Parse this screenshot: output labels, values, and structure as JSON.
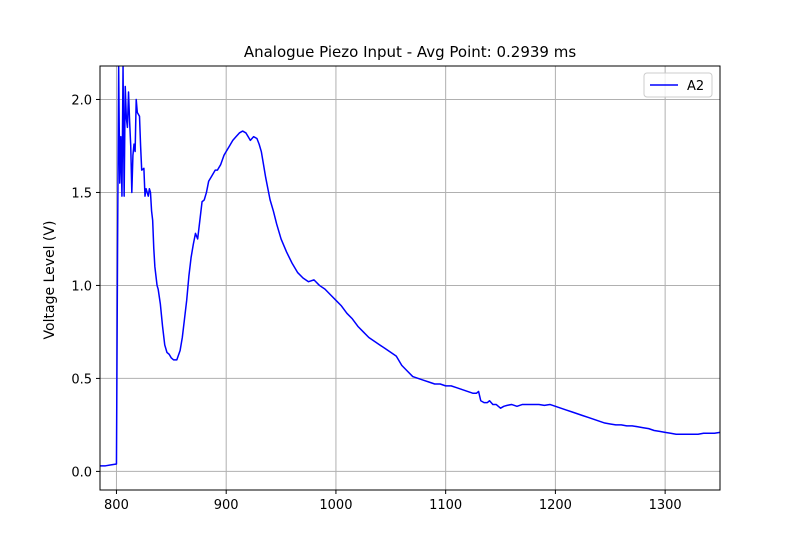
{
  "chart_data": {
    "type": "line",
    "title": "Analogue Piezo Input - Avg Point: 0.2939 ms",
    "xlabel": "",
    "ylabel": "Voltage Level (V)",
    "xlim": [
      785,
      1350
    ],
    "ylim": [
      -0.1,
      2.18
    ],
    "xticks": [
      800,
      900,
      1000,
      1100,
      1200,
      1300
    ],
    "yticks": [
      0.0,
      0.5,
      1.0,
      1.5,
      2.0
    ],
    "xtick_labels": [
      "800",
      "900",
      "1000",
      "1100",
      "1200",
      "1300"
    ],
    "ytick_labels": [
      "0.0",
      "0.5",
      "1.0",
      "1.5",
      "2.0"
    ],
    "grid": true,
    "legend_position": "top-right",
    "series": [
      {
        "name": "A2",
        "color": "#0000ff",
        "x": [
          785,
          790,
          795,
          800,
          801,
          802,
          803,
          804,
          805,
          806,
          807,
          808,
          809,
          810,
          811,
          812,
          813,
          814,
          815,
          816,
          817,
          818,
          819,
          820,
          821,
          822,
          823,
          825,
          826,
          827,
          828,
          829,
          830,
          831,
          832,
          833,
          834,
          835,
          836,
          837,
          838,
          840,
          842,
          844,
          846,
          848,
          850,
          852,
          855,
          858,
          860,
          862,
          864,
          866,
          868,
          870,
          872,
          874,
          876,
          878,
          880,
          882,
          884,
          886,
          888,
          890,
          892,
          895,
          898,
          900,
          903,
          906,
          909,
          912,
          915,
          918,
          920,
          922,
          925,
          928,
          930,
          932,
          934,
          936,
          938,
          940,
          943,
          946,
          950,
          955,
          960,
          965,
          970,
          975,
          980,
          985,
          990,
          995,
          1000,
          1005,
          1010,
          1015,
          1020,
          1025,
          1030,
          1035,
          1040,
          1045,
          1050,
          1055,
          1060,
          1065,
          1070,
          1075,
          1080,
          1085,
          1090,
          1095,
          1100,
          1105,
          1110,
          1115,
          1120,
          1125,
          1128,
          1130,
          1132,
          1135,
          1138,
          1140,
          1143,
          1146,
          1150,
          1153,
          1156,
          1160,
          1165,
          1170,
          1175,
          1180,
          1185,
          1190,
          1195,
          1200,
          1205,
          1210,
          1215,
          1220,
          1225,
          1230,
          1235,
          1240,
          1245,
          1250,
          1255,
          1260,
          1265,
          1270,
          1275,
          1280,
          1285,
          1290,
          1295,
          1300,
          1305,
          1310,
          1315,
          1320,
          1325,
          1330,
          1335,
          1340,
          1345,
          1350
        ],
        "values": [
          0.03,
          0.03,
          0.035,
          0.04,
          1.2,
          2.18,
          1.55,
          1.8,
          1.48,
          2.18,
          1.48,
          2.07,
          1.9,
          1.85,
          2.04,
          1.88,
          1.75,
          1.5,
          1.7,
          1.76,
          1.72,
          2.0,
          1.93,
          1.92,
          1.91,
          1.75,
          1.62,
          1.63,
          1.48,
          1.52,
          1.5,
          1.48,
          1.52,
          1.5,
          1.4,
          1.35,
          1.2,
          1.1,
          1.05,
          1.0,
          0.98,
          0.9,
          0.78,
          0.68,
          0.64,
          0.63,
          0.61,
          0.6,
          0.6,
          0.65,
          0.72,
          0.82,
          0.92,
          1.05,
          1.15,
          1.22,
          1.28,
          1.25,
          1.35,
          1.45,
          1.46,
          1.5,
          1.56,
          1.58,
          1.6,
          1.62,
          1.62,
          1.65,
          1.7,
          1.72,
          1.75,
          1.78,
          1.8,
          1.82,
          1.83,
          1.82,
          1.8,
          1.78,
          1.8,
          1.79,
          1.76,
          1.72,
          1.65,
          1.58,
          1.52,
          1.46,
          1.4,
          1.33,
          1.25,
          1.18,
          1.12,
          1.07,
          1.04,
          1.02,
          1.03,
          1.0,
          0.98,
          0.95,
          0.92,
          0.89,
          0.85,
          0.82,
          0.78,
          0.75,
          0.72,
          0.7,
          0.68,
          0.66,
          0.64,
          0.62,
          0.57,
          0.54,
          0.51,
          0.5,
          0.49,
          0.48,
          0.47,
          0.47,
          0.46,
          0.46,
          0.45,
          0.44,
          0.43,
          0.42,
          0.42,
          0.43,
          0.38,
          0.37,
          0.37,
          0.38,
          0.36,
          0.36,
          0.34,
          0.35,
          0.355,
          0.36,
          0.35,
          0.36,
          0.36,
          0.36,
          0.36,
          0.355,
          0.36,
          0.35,
          0.34,
          0.33,
          0.32,
          0.31,
          0.3,
          0.29,
          0.28,
          0.27,
          0.26,
          0.255,
          0.25,
          0.25,
          0.245,
          0.245,
          0.24,
          0.235,
          0.23,
          0.22,
          0.215,
          0.21,
          0.205,
          0.2,
          0.2,
          0.2,
          0.2,
          0.2,
          0.205,
          0.205,
          0.205,
          0.21
        ]
      }
    ]
  }
}
